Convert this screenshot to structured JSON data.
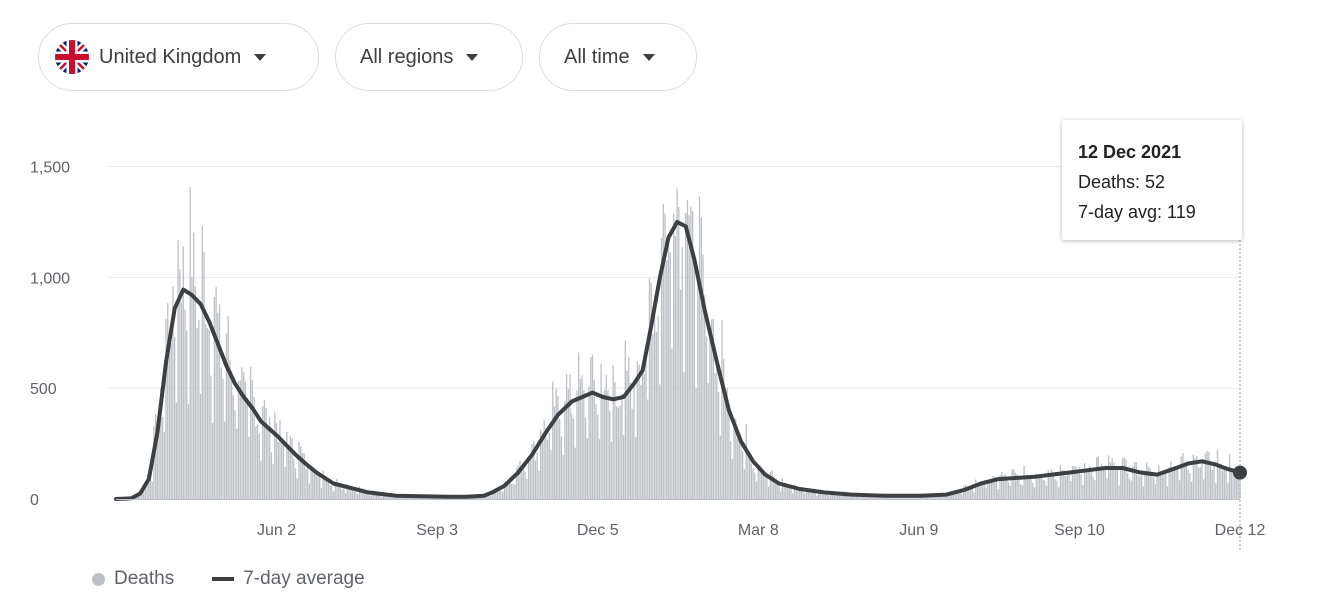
{
  "filters": {
    "country": {
      "label": "United Kingdom",
      "icon": "uk-flag-icon"
    },
    "region": {
      "label": "All regions"
    },
    "period": {
      "label": "All time"
    }
  },
  "tooltip": {
    "date": "12 Dec 2021",
    "deaths_label": "Deaths: 52",
    "avg_label": "7-day avg: 119"
  },
  "colors": {
    "bars": "#bdc1c6",
    "line": "#3c4043",
    "grid": "#e8eaed",
    "axis": "#bdc1c6"
  },
  "chart_data": {
    "type": "bar",
    "overlay": "line",
    "legend": {
      "position": "bottom-left",
      "bar_label": "Deaths",
      "line_label": "7-day average"
    },
    "grid": true,
    "y_range": [
      0,
      1710
    ],
    "y_ticks": [
      0,
      500,
      1000,
      1500
    ],
    "y_tick_labels": [
      "0",
      "500",
      "1,000",
      "1,500"
    ],
    "x_range": [
      "2020-03-01",
      "2021-12-12"
    ],
    "x_ticks": [
      {
        "date": "2020-06-02",
        "label": "Jun 2"
      },
      {
        "date": "2020-09-03",
        "label": "Sep 3"
      },
      {
        "date": "2020-12-05",
        "label": "Dec 5"
      },
      {
        "date": "2021-03-08",
        "label": "Mar 8"
      },
      {
        "date": "2021-06-09",
        "label": "Jun 9"
      },
      {
        "date": "2021-09-10",
        "label": "Sep 10"
      },
      {
        "date": "2021-12-12",
        "label": "Dec 12"
      }
    ],
    "series": [
      {
        "name": "7-day average",
        "x": [
          "2020-03-01",
          "2020-03-10",
          "2020-03-15",
          "2020-03-20",
          "2020-03-25",
          "2020-03-30",
          "2020-04-04",
          "2020-04-09",
          "2020-04-14",
          "2020-04-19",
          "2020-04-24",
          "2020-04-29",
          "2020-05-04",
          "2020-05-09",
          "2020-05-14",
          "2020-05-19",
          "2020-05-24",
          "2020-05-29",
          "2020-06-03",
          "2020-06-08",
          "2020-06-13",
          "2020-06-18",
          "2020-06-25",
          "2020-07-05",
          "2020-07-15",
          "2020-07-25",
          "2020-08-10",
          "2020-08-25",
          "2020-09-10",
          "2020-09-20",
          "2020-09-30",
          "2020-10-05",
          "2020-10-12",
          "2020-10-20",
          "2020-10-28",
          "2020-11-05",
          "2020-11-12",
          "2020-11-20",
          "2020-11-26",
          "2020-12-02",
          "2020-12-08",
          "2020-12-14",
          "2020-12-20",
          "2020-12-26",
          "2020-12-31",
          "2021-01-05",
          "2021-01-10",
          "2021-01-15",
          "2021-01-20",
          "2021-01-25",
          "2021-01-30",
          "2021-02-05",
          "2021-02-12",
          "2021-02-19",
          "2021-02-26",
          "2021-03-05",
          "2021-03-12",
          "2021-03-20",
          "2021-04-01",
          "2021-04-15",
          "2021-05-01",
          "2021-05-20",
          "2021-06-10",
          "2021-06-25",
          "2021-07-05",
          "2021-07-15",
          "2021-07-25",
          "2021-08-05",
          "2021-08-15",
          "2021-08-25",
          "2021-09-05",
          "2021-09-15",
          "2021-09-25",
          "2021-10-05",
          "2021-10-15",
          "2021-10-25",
          "2021-11-05",
          "2021-11-12",
          "2021-11-20",
          "2021-11-28",
          "2021-12-05",
          "2021-12-12"
        ],
        "y": [
          0,
          3,
          25,
          90,
          300,
          620,
          860,
          945,
          920,
          880,
          800,
          700,
          600,
          520,
          460,
          410,
          350,
          315,
          280,
          240,
          200,
          165,
          120,
          70,
          50,
          30,
          15,
          12,
          10,
          10,
          15,
          30,
          60,
          120,
          200,
          300,
          380,
          440,
          460,
          480,
          460,
          450,
          460,
          520,
          580,
          780,
          1000,
          1180,
          1250,
          1230,
          1080,
          850,
          620,
          400,
          260,
          170,
          110,
          70,
          45,
          30,
          20,
          15,
          15,
          20,
          40,
          70,
          90,
          95,
          100,
          110,
          120,
          130,
          140,
          140,
          120,
          110,
          140,
          160,
          170,
          155,
          135,
          119
        ]
      }
    ],
    "bars_note": "Daily deaths shown as grey bars scattered around the 7-day average"
  }
}
